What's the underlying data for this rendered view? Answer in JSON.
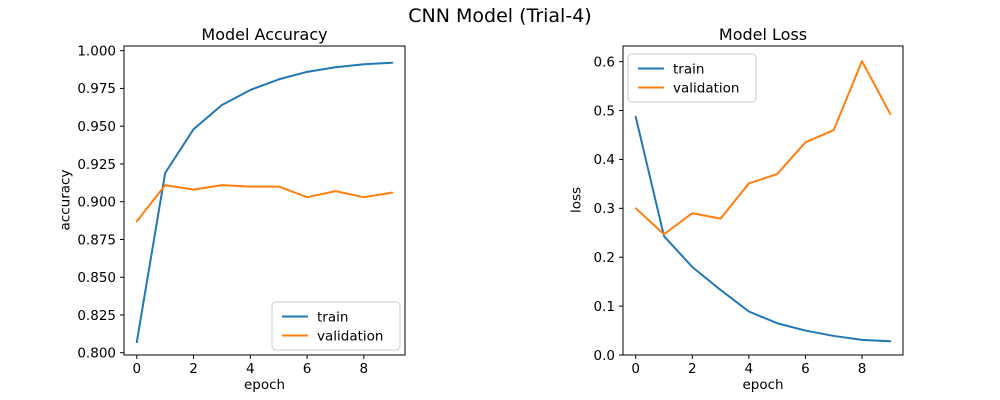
{
  "figure": {
    "suptitle": "CNN Model (Trial-4)",
    "background_color": "#ffffff",
    "text_color": "#000000"
  },
  "chart_data": [
    {
      "type": "line",
      "title": "Model Accuracy",
      "xlabel": "epoch",
      "ylabel": "accuracy",
      "x": [
        0,
        1,
        2,
        3,
        4,
        5,
        6,
        7,
        8,
        9
      ],
      "series": [
        {
          "name": "train",
          "color": "#1f77b4",
          "values": [
            0.807,
            0.919,
            0.948,
            0.964,
            0.974,
            0.981,
            0.986,
            0.989,
            0.991,
            0.992
          ]
        },
        {
          "name": "validation",
          "color": "#ff7f0e",
          "values": [
            0.887,
            0.911,
            0.908,
            0.911,
            0.91,
            0.91,
            0.903,
            0.907,
            0.903,
            0.906
          ]
        }
      ],
      "xlim": [
        -0.45,
        9.45
      ],
      "ylim": [
        0.7985,
        1.0031
      ],
      "xticks": [
        {
          "v": 0,
          "label": "0"
        },
        {
          "v": 2,
          "label": "2"
        },
        {
          "v": 4,
          "label": "4"
        },
        {
          "v": 6,
          "label": "6"
        },
        {
          "v": 8,
          "label": "8"
        }
      ],
      "yticks": [
        {
          "v": 0.8,
          "label": "0.800"
        },
        {
          "v": 0.825,
          "label": "0.825"
        },
        {
          "v": 0.85,
          "label": "0.850"
        },
        {
          "v": 0.875,
          "label": "0.875"
        },
        {
          "v": 0.9,
          "label": "0.900"
        },
        {
          "v": 0.925,
          "label": "0.925"
        },
        {
          "v": 0.95,
          "label": "0.950"
        },
        {
          "v": 0.975,
          "label": "0.975"
        },
        {
          "v": 1.0,
          "label": "1.000"
        }
      ],
      "grid": false,
      "legend_loc": "lower right"
    },
    {
      "type": "line",
      "title": "Model Loss",
      "xlabel": "epoch",
      "ylabel": "loss",
      "x": [
        0,
        1,
        2,
        3,
        4,
        5,
        6,
        7,
        8,
        9
      ],
      "series": [
        {
          "name": "train",
          "color": "#1f77b4",
          "values": [
            0.487,
            0.243,
            0.18,
            0.133,
            0.089,
            0.065,
            0.05,
            0.039,
            0.031,
            0.028
          ]
        },
        {
          "name": "validation",
          "color": "#ff7f0e",
          "values": [
            0.3,
            0.247,
            0.29,
            0.279,
            0.351,
            0.37,
            0.435,
            0.46,
            0.601,
            0.493
          ]
        }
      ],
      "xlim": [
        -0.45,
        9.45
      ],
      "ylim": [
        0.0,
        0.632
      ],
      "xticks": [
        {
          "v": 0,
          "label": "0"
        },
        {
          "v": 2,
          "label": "2"
        },
        {
          "v": 4,
          "label": "4"
        },
        {
          "v": 6,
          "label": "6"
        },
        {
          "v": 8,
          "label": "8"
        }
      ],
      "yticks": [
        {
          "v": 0.0,
          "label": "0.0"
        },
        {
          "v": 0.1,
          "label": "0.1"
        },
        {
          "v": 0.2,
          "label": "0.2"
        },
        {
          "v": 0.3,
          "label": "0.3"
        },
        {
          "v": 0.4,
          "label": "0.4"
        },
        {
          "v": 0.5,
          "label": "0.5"
        },
        {
          "v": 0.6,
          "label": "0.6"
        }
      ],
      "grid": false,
      "legend_loc": "upper left"
    }
  ]
}
